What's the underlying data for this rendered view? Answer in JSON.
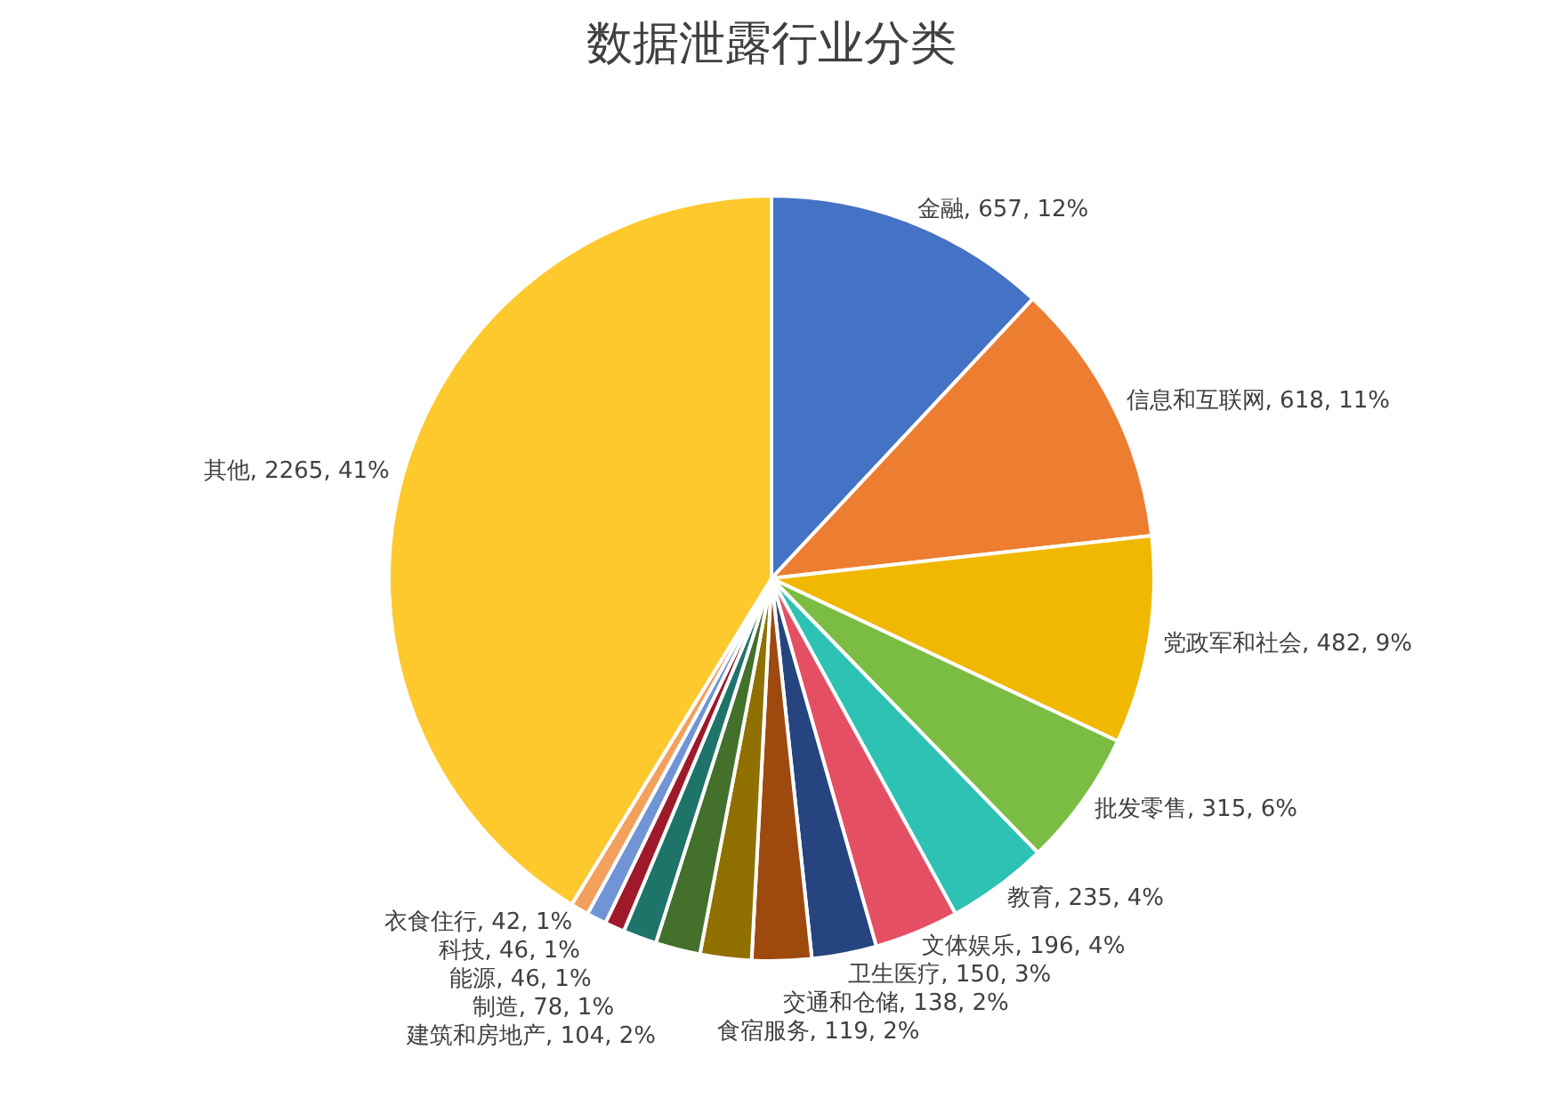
{
  "chart_data": {
    "type": "pie",
    "title": "数据泄露行业分类",
    "categories": [
      "金融",
      "信息和互联网",
      "党政军和社会",
      "批发零售",
      "教育",
      "文体娱乐",
      "卫生医疗",
      "交通和仓储",
      "食宿服务",
      "建筑和房地产",
      "制造",
      "能源",
      "科技",
      "衣食住行",
      "其他"
    ],
    "values": [
      657,
      618,
      482,
      315,
      235,
      196,
      150,
      138,
      119,
      104,
      78,
      46,
      46,
      42,
      2265
    ],
    "value_labels": [
      "657, 12%",
      "618, 11%",
      "482, 9%",
      "315, 6%",
      "235, 4%",
      "196, 4%",
      "150, 3%",
      "138, 2%",
      "119, 2%",
      "104, 2%",
      "78, 1%",
      "46, 1%",
      "46, 1%",
      "42, 1%",
      "2265, 41%"
    ],
    "colors": [
      "#4472c4",
      "#ed7d31",
      "#f0b800",
      "#7abd42",
      "#2ec2b4",
      "#e54f63",
      "#264580",
      "#9e4a0e",
      "#8f7000",
      "#43702b",
      "#1e7468",
      "#9e1a2b",
      "#7094d6",
      "#f2a05c",
      "#fdc92c"
    ],
    "legend": false
  }
}
